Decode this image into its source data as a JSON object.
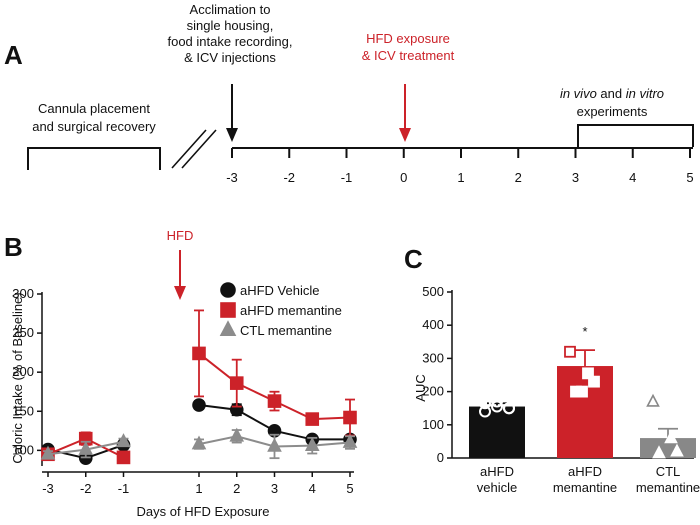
{
  "panels": {
    "a": "A",
    "b": "B",
    "c": "C"
  },
  "timeline": {
    "acclimation": [
      "Acclimation to",
      "single housing,",
      "food intake recording,",
      "& ICV injections"
    ],
    "hfd_exposure": [
      "HFD exposure",
      "& ICV treatment"
    ],
    "cannula": [
      "Cannula placement",
      "and surgical recovery"
    ],
    "experiments_line1": [
      "in vivo",
      " and ",
      "in vitro"
    ],
    "experiments_line2": "experiments",
    "ticks": [
      "-3",
      "-2",
      "-1",
      "0",
      "1",
      "2",
      "3",
      "4",
      "5"
    ],
    "colors": {
      "black": "#111111",
      "red": "#cc2229"
    }
  },
  "chart_data": [
    {
      "type": "line",
      "panel": "B",
      "title": "",
      "annotation": "HFD",
      "xlabel": "Days of HFD Exposure",
      "ylabel": "Caloric Intake (% of Baseline)",
      "x": [
        -3,
        -2,
        -1,
        1,
        2,
        3,
        4,
        5
      ],
      "x_tick_labels": [
        "-3",
        "-2",
        "-1",
        "1",
        "2",
        "3",
        "4",
        "5"
      ],
      "xlim": [
        -3,
        5
      ],
      "ylim": [
        80,
        300
      ],
      "y_ticks": [
        100,
        150,
        200,
        250,
        300
      ],
      "legend_position": "top-right",
      "series": [
        {
          "name": "aHFD Vehicle",
          "color": "#111111",
          "marker": "circle",
          "values": [
            101,
            90,
            107,
            158,
            152,
            125,
            114,
            114
          ],
          "errors": [
            3,
            4,
            5,
            5,
            7,
            5,
            3,
            4
          ]
        },
        {
          "name": "aHFD memantine",
          "color": "#cc2229",
          "marker": "square",
          "values": [
            95,
            115,
            91,
            224,
            186,
            163,
            140,
            142
          ],
          "errors": [
            4,
            8,
            3,
            55,
            30,
            12,
            3,
            23
          ]
        },
        {
          "name": "CTL memantine",
          "color": "#8c8c8c",
          "marker": "triangle",
          "values": [
            95,
            101,
            111,
            108,
            118,
            105,
            106,
            110
          ],
          "errors": [
            4,
            10,
            4,
            6,
            8,
            15,
            10,
            8
          ]
        }
      ]
    },
    {
      "type": "bar",
      "panel": "C",
      "title": "",
      "ylabel": "AUC",
      "categories": [
        [
          "aHFD",
          "vehicle"
        ],
        [
          "aHFD",
          "memantine"
        ],
        [
          "CTL",
          "memantine"
        ]
      ],
      "values": [
        155,
        277,
        60
      ],
      "errors": [
        10,
        48,
        28
      ],
      "colors": [
        "#111111",
        "#cc2229",
        "#888888"
      ],
      "ylim": [
        0,
        500
      ],
      "y_ticks": [
        0,
        100,
        200,
        300,
        400,
        500
      ],
      "significance": {
        "category_index": 1,
        "label": "*"
      },
      "individual_points": [
        {
          "marker": "circle",
          "values": [
            165,
            170,
            150,
            140,
            155,
            150
          ]
        },
        {
          "marker": "square",
          "values": [
            320,
            255,
            230,
            200,
            200
          ]
        },
        {
          "marker": "triangle",
          "values": [
            170,
            60,
            20,
            15
          ]
        }
      ]
    }
  ]
}
